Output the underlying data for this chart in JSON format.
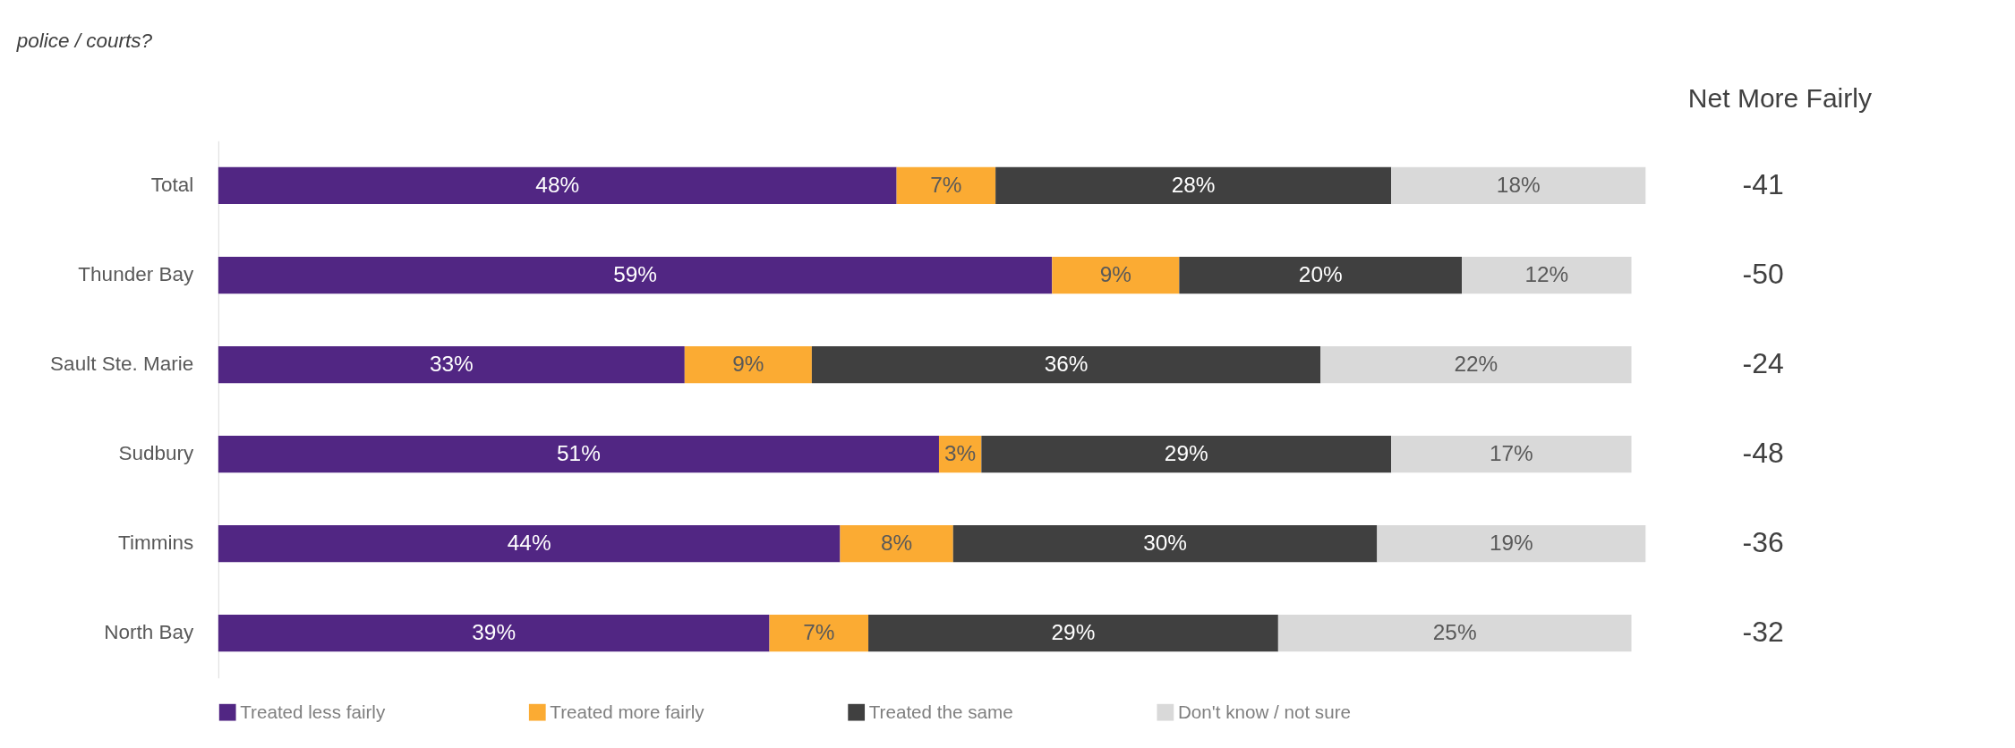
{
  "chart_data": {
    "type": "bar",
    "orientation": "horizontal",
    "stacked": true,
    "title": "police / courts?",
    "categories": [
      "Total",
      "Thunder Bay",
      "Sault Ste. Marie",
      "Sudbury",
      "Timmins",
      "North Bay"
    ],
    "series": [
      {
        "name": "Treated less fairly",
        "color": "#512683",
        "values": [
          48,
          59,
          33,
          51,
          44,
          39
        ],
        "value_labels": [
          "48%",
          "59%",
          "33%",
          "51%",
          "44%",
          "39%"
        ]
      },
      {
        "name": "Treated more fairly",
        "color": "#fbab33",
        "values": [
          7,
          9,
          9,
          3,
          8,
          7
        ],
        "value_labels": [
          "7%",
          "9%",
          "9%",
          "3%",
          "8%",
          "7%"
        ]
      },
      {
        "name": "Treated the same",
        "color": "#404040",
        "values": [
          28,
          20,
          36,
          29,
          30,
          29
        ],
        "value_labels": [
          "28%",
          "20%",
          "36%",
          "29%",
          "30%",
          "29%"
        ]
      },
      {
        "name": "Don't know / not sure",
        "color": "#d9d9d9",
        "values": [
          18,
          12,
          22,
          17,
          19,
          25
        ],
        "value_labels": [
          "18%",
          "12%",
          "22%",
          "17%",
          "19%",
          "25%"
        ]
      }
    ],
    "legend": "bottom",
    "tick_labels": "y",
    "annotations": [
      "Net More Fairly",
      "-41",
      "-50",
      "-24",
      "-48",
      "-36",
      "-32"
    ]
  }
}
